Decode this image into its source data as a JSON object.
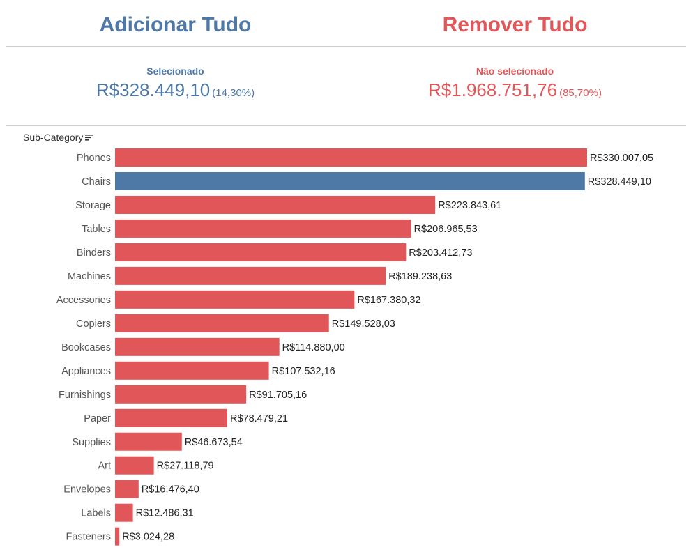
{
  "actions": {
    "add_all": "Adicionar Tudo",
    "remove_all": "Remover Tudo"
  },
  "colors": {
    "selected": "#4e79a7",
    "unselected": "#e15759"
  },
  "kpis": {
    "selected": {
      "label": "Selecionado",
      "value": "R$328.449,10",
      "percent": "(14,30%)"
    },
    "not_selected": {
      "label": "Não selecionado",
      "value": "R$1.968.751,76",
      "percent": "(85,70%)"
    }
  },
  "chart_header": {
    "field_label": "Sub-Category",
    "sort_icon": "sort-descending-icon"
  },
  "chart_data": {
    "type": "bar",
    "orientation": "horizontal",
    "sorted": "descending",
    "categories": [
      "Phones",
      "Chairs",
      "Storage",
      "Tables",
      "Binders",
      "Machines",
      "Accessories",
      "Copiers",
      "Bookcases",
      "Appliances",
      "Furnishings",
      "Paper",
      "Supplies",
      "Art",
      "Envelopes",
      "Labels",
      "Fasteners"
    ],
    "values": [
      330007.05,
      328449.1,
      223843.61,
      206965.53,
      203412.73,
      189238.63,
      167380.32,
      149528.03,
      114880.0,
      107532.16,
      91705.16,
      78479.21,
      46673.54,
      27118.79,
      16476.4,
      12486.31,
      3024.28
    ],
    "value_labels": [
      "R$330.007,05",
      "R$328.449,10",
      "R$223.843,61",
      "R$206.965,53",
      "R$203.412,73",
      "R$189.238,63",
      "R$167.380,32",
      "R$149.528,03",
      "R$114.880,00",
      "R$107.532,16",
      "R$91.705,16",
      "R$78.479,21",
      "R$46.673,54",
      "R$27.118,79",
      "R$16.476,40",
      "R$12.486,31",
      "R$3.024,28"
    ],
    "selected": [
      false,
      true,
      false,
      false,
      false,
      false,
      false,
      false,
      false,
      false,
      false,
      false,
      false,
      false,
      false,
      false,
      false
    ],
    "xlim": [
      0,
      330007.05
    ],
    "grid": false,
    "legend": "none"
  }
}
